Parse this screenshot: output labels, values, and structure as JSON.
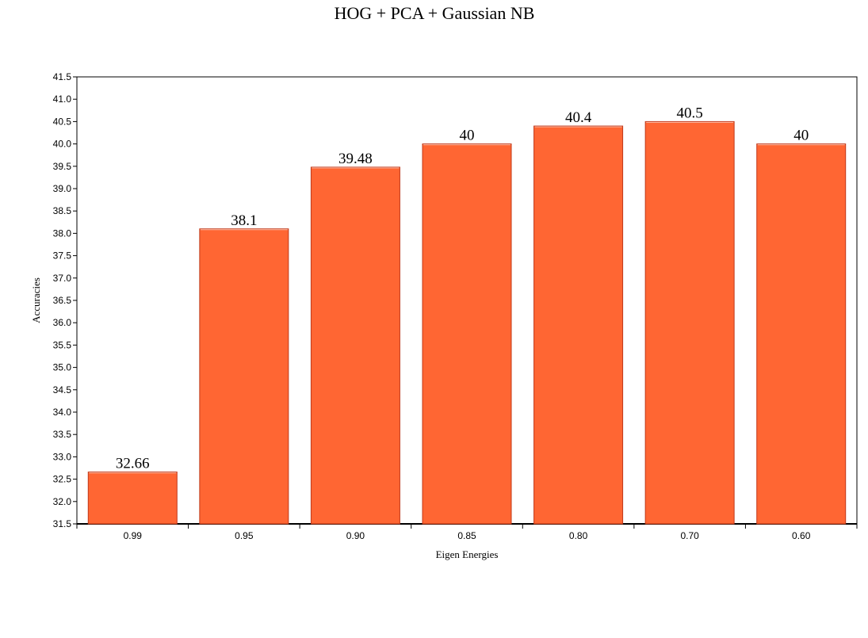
{
  "chart_data": {
    "type": "bar",
    "title": "HOG + PCA + Gaussian NB",
    "xlabel": "Eigen Energies",
    "ylabel": "Accuracies",
    "categories": [
      "0.99",
      "0.95",
      "0.90",
      "0.85",
      "0.80",
      "0.70",
      "0.60"
    ],
    "values": [
      32.66,
      38.1,
      39.48,
      40,
      40.4,
      40.5,
      40
    ],
    "value_labels": [
      "32.66",
      "38.1",
      "39.48",
      "40",
      "40.4",
      "40.5",
      "40"
    ],
    "ylim": [
      31.5,
      41.5
    ],
    "yticks": [
      31.5,
      32.0,
      32.5,
      33.0,
      33.5,
      34.0,
      34.5,
      35.0,
      35.5,
      36.0,
      36.5,
      37.0,
      37.5,
      38.0,
      38.5,
      39.0,
      39.5,
      40.0,
      40.5,
      41.0,
      41.5
    ],
    "ytick_labels": [
      "31.5",
      "32.0",
      "32.5",
      "33.0",
      "33.5",
      "34.0",
      "34.5",
      "35.0",
      "35.5",
      "36.0",
      "36.5",
      "37.0",
      "37.5",
      "38.0",
      "38.5",
      "39.0",
      "39.5",
      "40.0",
      "40.5",
      "41.0",
      "41.5"
    ],
    "grid": false,
    "legend": "none",
    "bar_color": "#ff6633",
    "bar_edge_color": "#c0391a"
  }
}
